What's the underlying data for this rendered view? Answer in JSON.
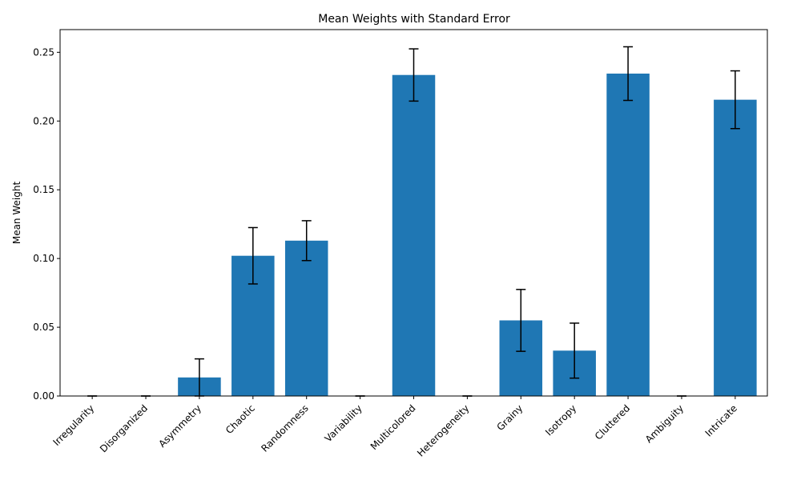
{
  "chart_data": {
    "type": "bar",
    "title": "Mean Weights with Standard Error",
    "xlabel": "",
    "ylabel": "Mean Weight",
    "categories": [
      "Irregularity",
      "Disorganized",
      "Asymmetry",
      "Chaotic",
      "Randomness",
      "Variability",
      "Multicolored",
      "Heterogeneity",
      "Grainy",
      "Isotropy",
      "Cluttered",
      "Ambiguity",
      "Intricate"
    ],
    "values": [
      0.0,
      0.0,
      0.0135,
      0.102,
      0.113,
      0.0,
      0.2335,
      0.0,
      0.055,
      0.033,
      0.2345,
      0.0,
      0.2155
    ],
    "errors": [
      0.0,
      0.0,
      0.0135,
      0.0205,
      0.0145,
      0.0,
      0.019,
      0.0,
      0.0225,
      0.02,
      0.0195,
      0.0,
      0.021
    ],
    "ylim": [
      0,
      0.2665
    ],
    "yticks": [
      "0.00",
      "0.05",
      "0.10",
      "0.15",
      "0.20",
      "0.25"
    ],
    "bar_color": "#1f77b4",
    "error_color": "#000000",
    "grid": false,
    "legend": false
  }
}
